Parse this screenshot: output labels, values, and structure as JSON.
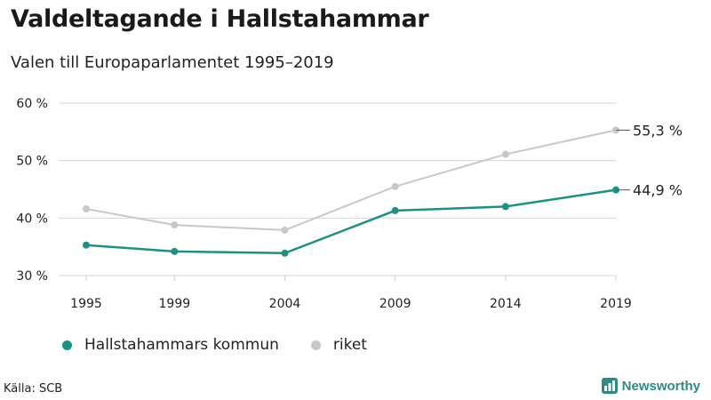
{
  "header": {
    "title": "Valdeltagande i Hallstahammar",
    "subtitle": "Valen till Europaparlamentet 1995–2019"
  },
  "footer": {
    "source": "Källa: SCB",
    "brand": "Newsworthy",
    "brand_color": "#2e8b83"
  },
  "chart_data": {
    "type": "line",
    "title": "Valdeltagande i Hallstahammar",
    "subtitle": "Valen till Europaparlamentet 1995–2019",
    "categories": [
      "1995",
      "1999",
      "2004",
      "2009",
      "2014",
      "2019"
    ],
    "x": [
      1995,
      1999,
      2004,
      2009,
      2014,
      2019
    ],
    "xlim": [
      1995,
      2019
    ],
    "ylim": [
      30,
      60
    ],
    "yticks": [
      30,
      40,
      50,
      60
    ],
    "ytick_labels": [
      "30 %",
      "40 %",
      "50 %",
      "60 %"
    ],
    "grid": "horizontal",
    "legend_position": "bottom-left",
    "series": [
      {
        "name": "Hallstahammars kommun",
        "color": "#1a9384",
        "values": [
          35.3,
          34.2,
          33.9,
          41.3,
          42.0,
          44.9
        ],
        "end_label": "44,9 %"
      },
      {
        "name": "riket",
        "color": "#c8c8c8",
        "values": [
          41.6,
          38.8,
          37.9,
          45.5,
          51.1,
          55.3
        ],
        "end_label": "55,3 %"
      }
    ]
  }
}
